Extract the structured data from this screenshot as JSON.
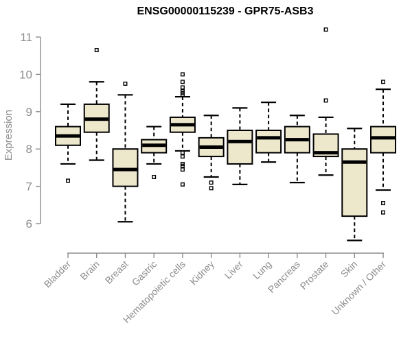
{
  "chart_data": {
    "type": "boxplot",
    "title": "ENSG00000115239 - GPR75-ASB3",
    "xlabel": "",
    "ylabel": "Expression",
    "ylim": [
      6,
      11
    ],
    "yticks": [
      6,
      7,
      8,
      9,
      10,
      11
    ],
    "grid": false,
    "legend": false,
    "categories": [
      "Bladder",
      "Brain",
      "Breast",
      "Gastric",
      "Hematopoietic cells",
      "Kidney",
      "Liver",
      "Lung",
      "Pancreas",
      "Prostate",
      "Skin",
      "Unknown / Other"
    ],
    "boxes": [
      {
        "category": "Bladder",
        "whisker_low": 7.6,
        "q1": 8.1,
        "median": 8.35,
        "q3": 8.6,
        "whisker_high": 9.2,
        "outliers": [
          7.15
        ]
      },
      {
        "category": "Brain",
        "whisker_low": 7.7,
        "q1": 8.45,
        "median": 8.8,
        "q3": 9.2,
        "whisker_high": 9.8,
        "outliers": [
          10.65
        ]
      },
      {
        "category": "Breast",
        "whisker_low": 6.05,
        "q1": 7.0,
        "median": 7.45,
        "q3": 8.0,
        "whisker_high": 9.45,
        "outliers": [
          9.75
        ]
      },
      {
        "category": "Gastric",
        "whisker_low": 7.6,
        "q1": 7.9,
        "median": 8.1,
        "q3": 8.25,
        "whisker_high": 8.6,
        "outliers": [
          7.25
        ]
      },
      {
        "category": "Hematopoietic cells",
        "whisker_low": 7.95,
        "q1": 8.45,
        "median": 8.65,
        "q3": 8.85,
        "whisker_high": 9.4,
        "outliers": [
          10.0,
          9.8,
          9.65,
          9.55,
          9.5,
          9.45,
          7.9,
          7.8,
          7.6,
          7.55,
          7.45,
          7.05
        ]
      },
      {
        "category": "Kidney",
        "whisker_low": 7.25,
        "q1": 7.8,
        "median": 8.05,
        "q3": 8.3,
        "whisker_high": 8.9,
        "outliers": [
          7.1,
          6.95
        ]
      },
      {
        "category": "Liver",
        "whisker_low": 7.05,
        "q1": 7.6,
        "median": 8.2,
        "q3": 8.5,
        "whisker_high": 9.1,
        "outliers": []
      },
      {
        "category": "Lung",
        "whisker_low": 7.65,
        "q1": 7.9,
        "median": 8.3,
        "q3": 8.5,
        "whisker_high": 9.25,
        "outliers": []
      },
      {
        "category": "Pancreas",
        "whisker_low": 7.1,
        "q1": 7.9,
        "median": 8.25,
        "q3": 8.6,
        "whisker_high": 8.9,
        "outliers": []
      },
      {
        "category": "Prostate",
        "whisker_low": 7.3,
        "q1": 7.8,
        "median": 7.9,
        "q3": 8.4,
        "whisker_high": 8.85,
        "outliers": [
          11.2,
          9.3
        ]
      },
      {
        "category": "Skin",
        "whisker_low": 5.55,
        "q1": 6.2,
        "median": 7.65,
        "q3": 8.0,
        "whisker_high": 8.55,
        "outliers": []
      },
      {
        "category": "Unknown / Other",
        "whisker_low": 6.9,
        "q1": 7.9,
        "median": 8.3,
        "q3": 8.6,
        "whisker_high": 9.6,
        "outliers": [
          9.8,
          6.55,
          6.3
        ]
      }
    ],
    "colors": {
      "box_fill": "#EDE7CC",
      "box_border": "#000000",
      "median": "#000000",
      "whisker": "#000000",
      "outlier": "#000000",
      "axis": "#8C8C8C",
      "tick_label": "#8C8C8C",
      "title": "#000000"
    }
  }
}
